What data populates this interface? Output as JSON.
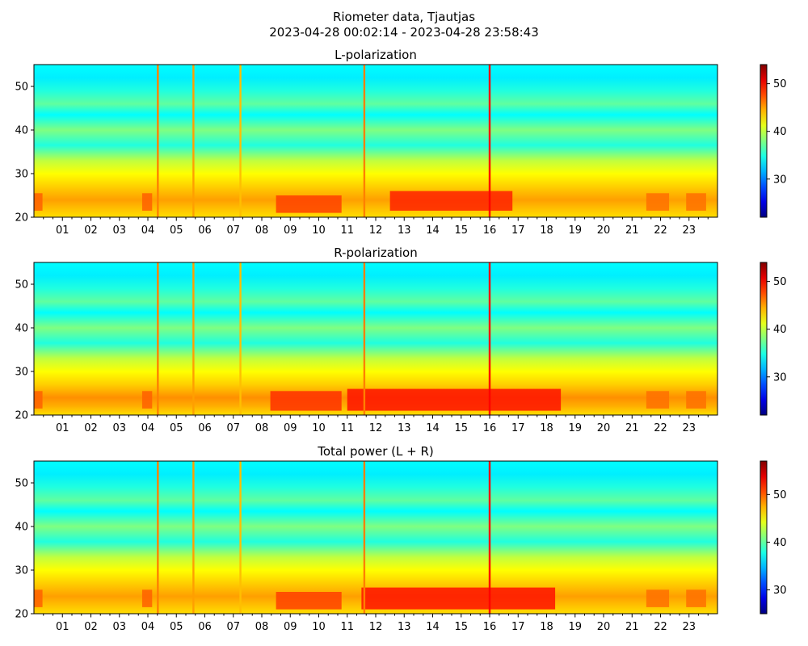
{
  "figure": {
    "title_line1": "Riometer data, Tjautjas",
    "title_line2": "2023-04-28 00:02:14 - 2023-04-28 23:58:43"
  },
  "chart_data": [
    {
      "type": "heatmap",
      "title": "L-polarization",
      "xlabel": "",
      "ylabel": "",
      "x_unit": "hour of day",
      "xlim": [
        0,
        24
      ],
      "x_ticks": [
        "01",
        "02",
        "03",
        "04",
        "05",
        "06",
        "07",
        "08",
        "09",
        "10",
        "11",
        "12",
        "13",
        "14",
        "15",
        "16",
        "17",
        "18",
        "19",
        "20",
        "21",
        "22",
        "23"
      ],
      "ylim": [
        20,
        55
      ],
      "y_ticks": [
        20,
        30,
        40,
        50
      ],
      "colormap": "jet",
      "clim": [
        22,
        54
      ],
      "colorbar_ticks": [
        30,
        40,
        50
      ],
      "base_rows": [
        {
          "y": 55,
          "v": 34
        },
        {
          "y": 52,
          "v": 33.5
        },
        {
          "y": 49,
          "v": 35
        },
        {
          "y": 46,
          "v": 37
        },
        {
          "y": 43.5,
          "v": 34
        },
        {
          "y": 40,
          "v": 38
        },
        {
          "y": 36.5,
          "v": 35
        },
        {
          "y": 33,
          "v": 40
        },
        {
          "y": 30,
          "v": 42
        },
        {
          "y": 27,
          "v": 43.5
        },
        {
          "y": 24,
          "v": 45
        },
        {
          "y": 22,
          "v": 44
        },
        {
          "y": 20,
          "v": 43
        }
      ],
      "bright_spans": [
        {
          "x0": 0.0,
          "x1": 0.3,
          "y0": 21.5,
          "y1": 25.5,
          "v": 47
        },
        {
          "x0": 3.8,
          "x1": 4.15,
          "y0": 21.5,
          "y1": 25.5,
          "v": 47
        },
        {
          "x0": 8.5,
          "x1": 10.8,
          "y0": 21,
          "y1": 25,
          "v": 48
        },
        {
          "x0": 12.5,
          "x1": 16.8,
          "y0": 21.5,
          "y1": 26,
          "v": 49
        },
        {
          "x0": 21.5,
          "x1": 22.3,
          "y0": 21.5,
          "y1": 25.5,
          "v": 46.5
        },
        {
          "x0": 22.9,
          "x1": 23.6,
          "y0": 21.5,
          "y1": 25.5,
          "v": 46.5
        }
      ],
      "vertical_spikes": [
        {
          "x": 4.35,
          "v": 46
        },
        {
          "x": 5.6,
          "v": 45
        },
        {
          "x": 7.25,
          "v": 44
        },
        {
          "x": 11.6,
          "v": 46
        },
        {
          "x": 16.0,
          "v": 50
        }
      ]
    },
    {
      "type": "heatmap",
      "title": "R-polarization",
      "xlabel": "",
      "ylabel": "",
      "x_unit": "hour of day",
      "xlim": [
        0,
        24
      ],
      "x_ticks": [
        "01",
        "02",
        "03",
        "04",
        "05",
        "06",
        "07",
        "08",
        "09",
        "10",
        "11",
        "12",
        "13",
        "14",
        "15",
        "16",
        "17",
        "18",
        "19",
        "20",
        "21",
        "22",
        "23"
      ],
      "ylim": [
        20,
        55
      ],
      "y_ticks": [
        20,
        30,
        40,
        50
      ],
      "colormap": "jet",
      "clim": [
        22,
        54
      ],
      "colorbar_ticks": [
        30,
        40,
        50
      ],
      "base_rows": [
        {
          "y": 55,
          "v": 34
        },
        {
          "y": 52,
          "v": 33.5
        },
        {
          "y": 49,
          "v": 35
        },
        {
          "y": 46,
          "v": 37
        },
        {
          "y": 43.5,
          "v": 34
        },
        {
          "y": 40,
          "v": 38
        },
        {
          "y": 36.5,
          "v": 35
        },
        {
          "y": 33,
          "v": 40
        },
        {
          "y": 30,
          "v": 42
        },
        {
          "y": 27,
          "v": 43.5
        },
        {
          "y": 24,
          "v": 45.5
        },
        {
          "y": 22,
          "v": 44.5
        },
        {
          "y": 20,
          "v": 43
        }
      ],
      "bright_spans": [
        {
          "x0": 0.0,
          "x1": 0.3,
          "y0": 21.5,
          "y1": 25.5,
          "v": 47
        },
        {
          "x0": 3.8,
          "x1": 4.15,
          "y0": 21.5,
          "y1": 25.5,
          "v": 47
        },
        {
          "x0": 8.3,
          "x1": 10.8,
          "y0": 21,
          "y1": 25.5,
          "v": 48.5
        },
        {
          "x0": 11.0,
          "x1": 18.5,
          "y0": 21,
          "y1": 26,
          "v": 49.5
        },
        {
          "x0": 21.5,
          "x1": 22.3,
          "y0": 21.5,
          "y1": 25.5,
          "v": 46.5
        },
        {
          "x0": 22.9,
          "x1": 23.6,
          "y0": 21.5,
          "y1": 25.5,
          "v": 46.5
        }
      ],
      "vertical_spikes": [
        {
          "x": 4.35,
          "v": 46
        },
        {
          "x": 5.6,
          "v": 45
        },
        {
          "x": 7.25,
          "v": 44
        },
        {
          "x": 11.6,
          "v": 46
        },
        {
          "x": 16.0,
          "v": 50
        }
      ]
    },
    {
      "type": "heatmap",
      "title": "Total power (L + R)",
      "xlabel": "",
      "ylabel": "",
      "x_unit": "hour of day",
      "xlim": [
        0,
        24
      ],
      "x_ticks": [
        "01",
        "02",
        "03",
        "04",
        "05",
        "06",
        "07",
        "08",
        "09",
        "10",
        "11",
        "12",
        "13",
        "14",
        "15",
        "16",
        "17",
        "18",
        "19",
        "20",
        "21",
        "22",
        "23"
      ],
      "ylim": [
        20,
        55
      ],
      "y_ticks": [
        20,
        30,
        40,
        50
      ],
      "colormap": "jet",
      "clim": [
        25,
        57
      ],
      "colorbar_ticks": [
        30,
        40,
        50
      ],
      "base_rows": [
        {
          "y": 55,
          "v": 37
        },
        {
          "y": 52,
          "v": 36.5
        },
        {
          "y": 49,
          "v": 38
        },
        {
          "y": 46,
          "v": 40
        },
        {
          "y": 43.5,
          "v": 37
        },
        {
          "y": 40,
          "v": 41
        },
        {
          "y": 36.5,
          "v": 38
        },
        {
          "y": 33,
          "v": 43
        },
        {
          "y": 30,
          "v": 45
        },
        {
          "y": 27,
          "v": 46.5
        },
        {
          "y": 24,
          "v": 48
        },
        {
          "y": 22,
          "v": 47
        },
        {
          "y": 20,
          "v": 46
        }
      ],
      "bright_spans": [
        {
          "x0": 0.0,
          "x1": 0.3,
          "y0": 21.5,
          "y1": 25.5,
          "v": 50
        },
        {
          "x0": 3.8,
          "x1": 4.15,
          "y0": 21.5,
          "y1": 25.5,
          "v": 50
        },
        {
          "x0": 8.5,
          "x1": 10.8,
          "y0": 21,
          "y1": 25,
          "v": 51
        },
        {
          "x0": 11.5,
          "x1": 18.3,
          "y0": 21,
          "y1": 26,
          "v": 52.5
        },
        {
          "x0": 21.5,
          "x1": 22.3,
          "y0": 21.5,
          "y1": 25.5,
          "v": 49.5
        },
        {
          "x0": 22.9,
          "x1": 23.6,
          "y0": 21.5,
          "y1": 25.5,
          "v": 49.5
        }
      ],
      "vertical_spikes": [
        {
          "x": 4.35,
          "v": 49
        },
        {
          "x": 5.6,
          "v": 48
        },
        {
          "x": 7.25,
          "v": 47
        },
        {
          "x": 11.6,
          "v": 49
        },
        {
          "x": 16.0,
          "v": 53
        }
      ]
    }
  ]
}
